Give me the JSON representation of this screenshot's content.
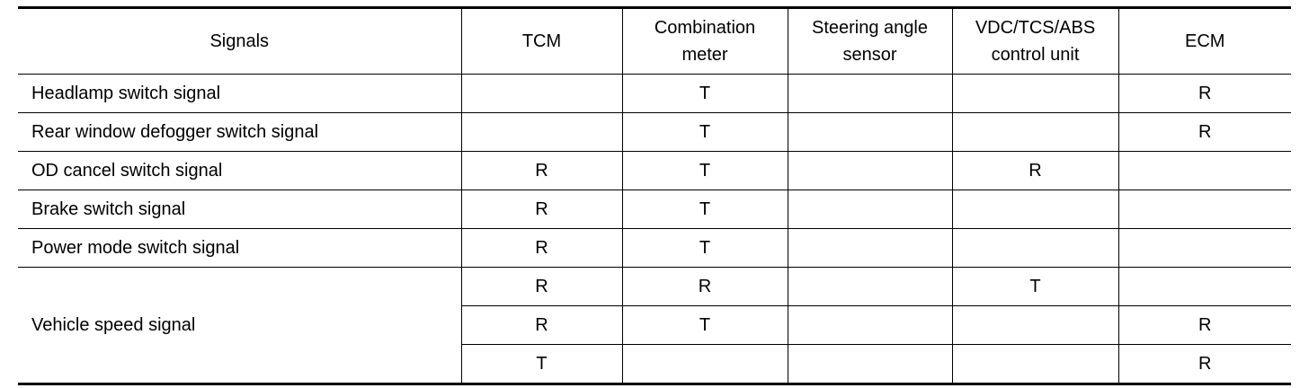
{
  "table": {
    "header": [
      [
        "Signals"
      ],
      [
        "TCM"
      ],
      [
        "Combination",
        "meter"
      ],
      [
        "Steering angle",
        "sensor"
      ],
      [
        "VDC/TCS/ABS",
        "control unit"
      ],
      [
        "ECM"
      ]
    ],
    "rows": [
      {
        "signal": "Headlamp switch signal",
        "entries": [
          [
            null,
            "T",
            null,
            null,
            "R"
          ]
        ]
      },
      {
        "signal": "Rear window defogger switch signal",
        "entries": [
          [
            null,
            "T",
            null,
            null,
            "R"
          ]
        ]
      },
      {
        "signal": "OD cancel switch signal",
        "entries": [
          [
            "R",
            "T",
            null,
            "R",
            null
          ]
        ]
      },
      {
        "signal": "Brake switch signal",
        "entries": [
          [
            "R",
            "T",
            null,
            null,
            null
          ]
        ]
      },
      {
        "signal": "Power mode switch signal",
        "entries": [
          [
            "R",
            "T",
            null,
            null,
            null
          ]
        ]
      },
      {
        "signal": "Vehicle speed signal",
        "entries": [
          [
            "R",
            "R",
            null,
            "T",
            null
          ],
          [
            "R",
            "T",
            null,
            null,
            "R"
          ],
          [
            "T",
            null,
            null,
            null,
            "R"
          ]
        ]
      }
    ]
  }
}
